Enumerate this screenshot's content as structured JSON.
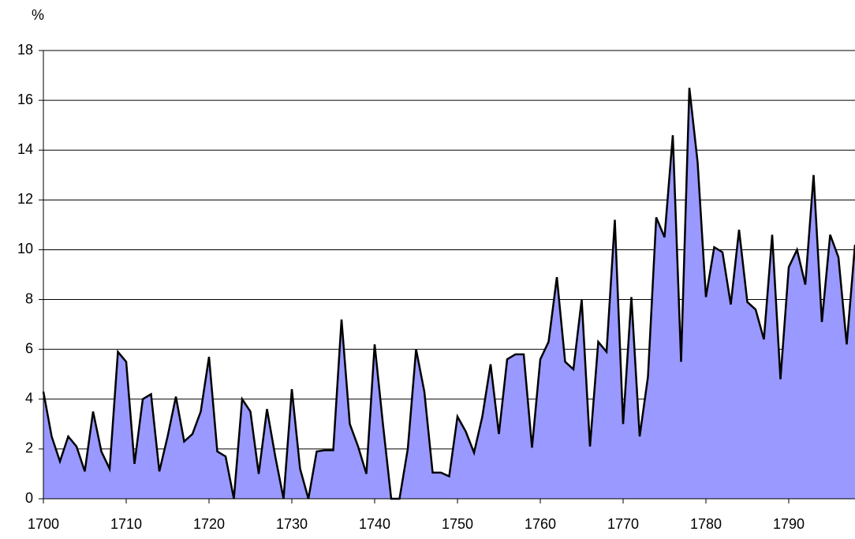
{
  "chart_data": {
    "type": "area",
    "y_label": "%",
    "x": [
      1700,
      1701,
      1702,
      1703,
      1704,
      1705,
      1706,
      1707,
      1708,
      1709,
      1710,
      1711,
      1712,
      1713,
      1714,
      1715,
      1716,
      1717,
      1718,
      1719,
      1720,
      1721,
      1722,
      1723,
      1724,
      1725,
      1726,
      1727,
      1728,
      1729,
      1730,
      1731,
      1732,
      1733,
      1734,
      1735,
      1736,
      1737,
      1738,
      1739,
      1740,
      1741,
      1742,
      1743,
      1744,
      1745,
      1746,
      1747,
      1748,
      1749,
      1750,
      1751,
      1752,
      1753,
      1754,
      1755,
      1756,
      1757,
      1758,
      1759,
      1760,
      1761,
      1762,
      1763,
      1764,
      1765,
      1766,
      1767,
      1768,
      1769,
      1770,
      1771,
      1772,
      1773,
      1774,
      1775,
      1776,
      1777,
      1778,
      1779,
      1780,
      1781,
      1782,
      1783,
      1784,
      1785,
      1786,
      1787,
      1788,
      1789,
      1790,
      1791,
      1792,
      1793,
      1794,
      1795,
      1796,
      1797,
      1798
    ],
    "values": [
      4.3,
      2.5,
      1.5,
      2.5,
      2.1,
      1.1,
      3.5,
      1.9,
      1.2,
      5.9,
      5.5,
      1.4,
      4.0,
      4.2,
      1.1,
      2.5,
      4.1,
      2.3,
      2.6,
      3.5,
      5.7,
      1.9,
      1.7,
      0,
      4.0,
      3.5,
      1.0,
      3.6,
      1.7,
      0,
      4.4,
      1.2,
      0,
      1.9,
      1.95,
      1.95,
      7.2,
      3.0,
      2.1,
      1.0,
      6.2,
      3.0,
      0,
      0,
      2.0,
      6.0,
      4.3,
      1.05,
      1.05,
      0.9,
      3.3,
      2.7,
      1.85,
      3.3,
      5.4,
      2.6,
      5.6,
      5.8,
      5.8,
      2.05,
      5.6,
      6.3,
      8.9,
      5.5,
      5.2,
      8.0,
      2.1,
      6.3,
      5.9,
      11.2,
      3.0,
      8.1,
      2.5,
      4.9,
      11.3,
      10.5,
      14.6,
      5.5,
      16.5,
      13.5,
      8.1,
      10.1,
      9.9,
      7.8,
      10.8,
      7.9,
      7.6,
      6.4,
      10.6,
      4.8,
      9.3,
      10.0,
      8.6,
      13.0,
      7.1,
      10.6,
      9.7,
      6.2,
      10.2
    ],
    "color": "#9999ff",
    "line_color": "#000000",
    "xlim": [
      1700,
      1798
    ],
    "xticks": [
      1700,
      1710,
      1720,
      1730,
      1740,
      1750,
      1760,
      1770,
      1780,
      1790
    ],
    "ylim": [
      0,
      18
    ],
    "yticks": [
      0,
      2,
      4,
      6,
      8,
      10,
      12,
      14,
      16,
      18
    ],
    "grid": true
  }
}
